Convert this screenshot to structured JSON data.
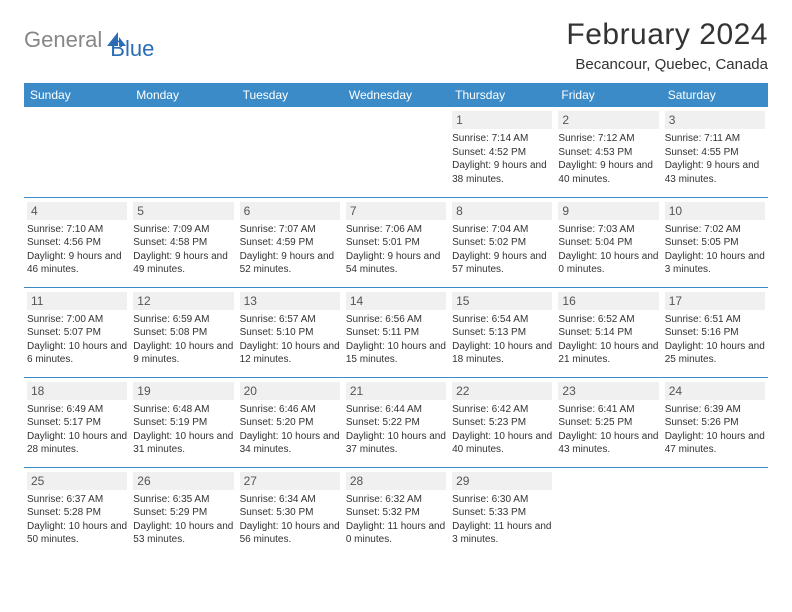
{
  "brand": {
    "part1": "General",
    "part2": "Blue"
  },
  "title": "February 2024",
  "location": "Becancour, Quebec, Canada",
  "colors": {
    "header_bg": "#3b8bc8",
    "header_text": "#ffffff",
    "daynum_bg": "#f0f0f0",
    "border": "#3b8bc8",
    "logo_gray": "#878787",
    "logo_blue": "#2a6db5"
  },
  "weekdays": [
    "Sunday",
    "Monday",
    "Tuesday",
    "Wednesday",
    "Thursday",
    "Friday",
    "Saturday"
  ],
  "weeks": [
    [
      null,
      null,
      null,
      null,
      {
        "n": "1",
        "sr": "Sunrise: 7:14 AM",
        "ss": "Sunset: 4:52 PM",
        "dl": "Daylight: 9 hours and 38 minutes."
      },
      {
        "n": "2",
        "sr": "Sunrise: 7:12 AM",
        "ss": "Sunset: 4:53 PM",
        "dl": "Daylight: 9 hours and 40 minutes."
      },
      {
        "n": "3",
        "sr": "Sunrise: 7:11 AM",
        "ss": "Sunset: 4:55 PM",
        "dl": "Daylight: 9 hours and 43 minutes."
      }
    ],
    [
      {
        "n": "4",
        "sr": "Sunrise: 7:10 AM",
        "ss": "Sunset: 4:56 PM",
        "dl": "Daylight: 9 hours and 46 minutes."
      },
      {
        "n": "5",
        "sr": "Sunrise: 7:09 AM",
        "ss": "Sunset: 4:58 PM",
        "dl": "Daylight: 9 hours and 49 minutes."
      },
      {
        "n": "6",
        "sr": "Sunrise: 7:07 AM",
        "ss": "Sunset: 4:59 PM",
        "dl": "Daylight: 9 hours and 52 minutes."
      },
      {
        "n": "7",
        "sr": "Sunrise: 7:06 AM",
        "ss": "Sunset: 5:01 PM",
        "dl": "Daylight: 9 hours and 54 minutes."
      },
      {
        "n": "8",
        "sr": "Sunrise: 7:04 AM",
        "ss": "Sunset: 5:02 PM",
        "dl": "Daylight: 9 hours and 57 minutes."
      },
      {
        "n": "9",
        "sr": "Sunrise: 7:03 AM",
        "ss": "Sunset: 5:04 PM",
        "dl": "Daylight: 10 hours and 0 minutes."
      },
      {
        "n": "10",
        "sr": "Sunrise: 7:02 AM",
        "ss": "Sunset: 5:05 PM",
        "dl": "Daylight: 10 hours and 3 minutes."
      }
    ],
    [
      {
        "n": "11",
        "sr": "Sunrise: 7:00 AM",
        "ss": "Sunset: 5:07 PM",
        "dl": "Daylight: 10 hours and 6 minutes."
      },
      {
        "n": "12",
        "sr": "Sunrise: 6:59 AM",
        "ss": "Sunset: 5:08 PM",
        "dl": "Daylight: 10 hours and 9 minutes."
      },
      {
        "n": "13",
        "sr": "Sunrise: 6:57 AM",
        "ss": "Sunset: 5:10 PM",
        "dl": "Daylight: 10 hours and 12 minutes."
      },
      {
        "n": "14",
        "sr": "Sunrise: 6:56 AM",
        "ss": "Sunset: 5:11 PM",
        "dl": "Daylight: 10 hours and 15 minutes."
      },
      {
        "n": "15",
        "sr": "Sunrise: 6:54 AM",
        "ss": "Sunset: 5:13 PM",
        "dl": "Daylight: 10 hours and 18 minutes."
      },
      {
        "n": "16",
        "sr": "Sunrise: 6:52 AM",
        "ss": "Sunset: 5:14 PM",
        "dl": "Daylight: 10 hours and 21 minutes."
      },
      {
        "n": "17",
        "sr": "Sunrise: 6:51 AM",
        "ss": "Sunset: 5:16 PM",
        "dl": "Daylight: 10 hours and 25 minutes."
      }
    ],
    [
      {
        "n": "18",
        "sr": "Sunrise: 6:49 AM",
        "ss": "Sunset: 5:17 PM",
        "dl": "Daylight: 10 hours and 28 minutes."
      },
      {
        "n": "19",
        "sr": "Sunrise: 6:48 AM",
        "ss": "Sunset: 5:19 PM",
        "dl": "Daylight: 10 hours and 31 minutes."
      },
      {
        "n": "20",
        "sr": "Sunrise: 6:46 AM",
        "ss": "Sunset: 5:20 PM",
        "dl": "Daylight: 10 hours and 34 minutes."
      },
      {
        "n": "21",
        "sr": "Sunrise: 6:44 AM",
        "ss": "Sunset: 5:22 PM",
        "dl": "Daylight: 10 hours and 37 minutes."
      },
      {
        "n": "22",
        "sr": "Sunrise: 6:42 AM",
        "ss": "Sunset: 5:23 PM",
        "dl": "Daylight: 10 hours and 40 minutes."
      },
      {
        "n": "23",
        "sr": "Sunrise: 6:41 AM",
        "ss": "Sunset: 5:25 PM",
        "dl": "Daylight: 10 hours and 43 minutes."
      },
      {
        "n": "24",
        "sr": "Sunrise: 6:39 AM",
        "ss": "Sunset: 5:26 PM",
        "dl": "Daylight: 10 hours and 47 minutes."
      }
    ],
    [
      {
        "n": "25",
        "sr": "Sunrise: 6:37 AM",
        "ss": "Sunset: 5:28 PM",
        "dl": "Daylight: 10 hours and 50 minutes."
      },
      {
        "n": "26",
        "sr": "Sunrise: 6:35 AM",
        "ss": "Sunset: 5:29 PM",
        "dl": "Daylight: 10 hours and 53 minutes."
      },
      {
        "n": "27",
        "sr": "Sunrise: 6:34 AM",
        "ss": "Sunset: 5:30 PM",
        "dl": "Daylight: 10 hours and 56 minutes."
      },
      {
        "n": "28",
        "sr": "Sunrise: 6:32 AM",
        "ss": "Sunset: 5:32 PM",
        "dl": "Daylight: 11 hours and 0 minutes."
      },
      {
        "n": "29",
        "sr": "Sunrise: 6:30 AM",
        "ss": "Sunset: 5:33 PM",
        "dl": "Daylight: 11 hours and 3 minutes."
      },
      null,
      null
    ]
  ]
}
